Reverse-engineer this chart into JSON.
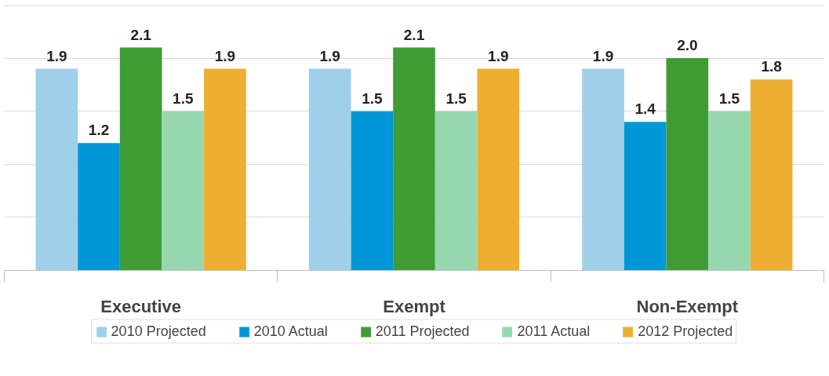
{
  "chart_data": {
    "type": "bar",
    "categories": [
      "Executive",
      "Exempt",
      "Non-Exempt"
    ],
    "series": [
      {
        "name": "2010 Projected",
        "color": "#a0cfea",
        "values": [
          1.9,
          1.9,
          1.9
        ],
        "value_labels": [
          "1.9",
          "1.9",
          "1.9"
        ]
      },
      {
        "name": "2010 Actual",
        "color": "#0097d9",
        "values": [
          1.2,
          1.5,
          1.4
        ],
        "value_labels": [
          "1.2",
          "1.5",
          "1.4"
        ]
      },
      {
        "name": "2011 Projected",
        "color": "#3f9c35",
        "values": [
          2.1,
          2.1,
          2.0
        ],
        "value_labels": [
          "2.1",
          "2.1",
          "2.0"
        ]
      },
      {
        "name": "2011 Actual",
        "color": "#97d8b0",
        "values": [
          1.5,
          1.5,
          1.5
        ],
        "value_labels": [
          "1.5",
          "1.5",
          "1.5"
        ]
      },
      {
        "name": "2012 Projected",
        "color": "#edae31",
        "values": [
          1.9,
          1.9,
          1.8
        ],
        "value_labels": [
          "1.9",
          "1.9",
          "1.8"
        ]
      }
    ],
    "ylim": [
      0,
      2.5
    ],
    "yticks": [
      {
        "value": 0,
        "label": null
      },
      {
        "value": 0.5,
        "label": null
      },
      {
        "value": 1.0,
        "label": null
      },
      {
        "value": 1.5,
        "label": null
      },
      {
        "value": 2.0,
        "label": null
      },
      {
        "value": 2.5,
        "label": null
      }
    ],
    "tick_labels": "x",
    "grid": "y",
    "legend": "bottom"
  }
}
